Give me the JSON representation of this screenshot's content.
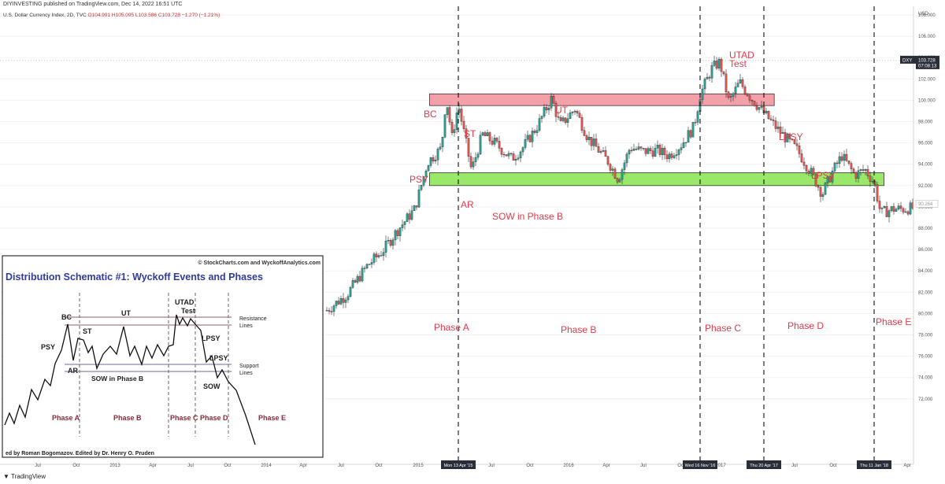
{
  "header": {
    "published": "DIYINVESTING published on TradingView.com, Dec 14, 2022 16:51 UTC",
    "symbol_line": "U.S. Dollar Currency Index, 2D, TVC",
    "ohlc": "O104.991 H105.095 L103.586 C103.728 −1.270 (−1.21%)"
  },
  "footer": {
    "brand": "TradingView"
  },
  "colors": {
    "up": "#26a69a",
    "down": "#ef5350",
    "label": "#e03a4a",
    "resistance_fill": "#f4a0a8",
    "support_fill": "#9ae86a",
    "inset_title": "#2f3c9e"
  },
  "chart_data": {
    "type": "candlestick",
    "title": "U.S. Dollar Currency Index, 2D, TVC",
    "currency": "USD",
    "ylim": [
      70.0,
      111.0
    ],
    "y_ticks": [
      "108.000",
      "106.000",
      "104.000",
      "102.000",
      "100.000",
      "98.000",
      "96.000",
      "94.000",
      "92.000",
      "90.000",
      "88.000",
      "86.000",
      "84.000",
      "82.000",
      "80.000",
      "78.000",
      "76.000",
      "74.000",
      "72.000"
    ],
    "x_ticks": [
      "Jul",
      "Oct",
      "2013",
      "Apr",
      "Jul",
      "Oct",
      "2014",
      "Apr",
      "Jul",
      "Oct",
      "2015",
      "Jul",
      "Oct",
      "2016",
      "Apr",
      "Jul",
      "Oct",
      "2017",
      "Jul",
      "Oct",
      "Apr"
    ],
    "last_price": {
      "symbol": "DXY",
      "value": "103.728",
      "countdown": "07:08:13"
    },
    "secondary_price": "90.264",
    "price_path": [
      [
        "2014-06-30",
        80.3
      ],
      [
        "2014-08-10",
        81.8
      ],
      [
        "2014-09-20",
        84.5
      ],
      [
        "2014-10-20",
        85.8
      ],
      [
        "2014-11-20",
        87.8
      ],
      [
        "2014-12-25",
        89.8
      ],
      [
        "2015-01-25",
        94.2
      ],
      [
        "2015-03-01",
        95.5
      ],
      [
        "2015-03-13",
        100.3
      ],
      [
        "2015-03-28",
        96.5
      ],
      [
        "2015-04-13",
        99.6
      ],
      [
        "2015-05-15",
        93.4
      ],
      [
        "2015-06-10",
        96.8
      ],
      [
        "2015-07-10",
        96.0
      ],
      [
        "2015-08-20",
        94.5
      ],
      [
        "2015-09-15",
        95.5
      ],
      [
        "2015-10-20",
        97.5
      ],
      [
        "2015-11-25",
        100.2
      ],
      [
        "2015-12-15",
        97.6
      ],
      [
        "2016-01-20",
        99.2
      ],
      [
        "2016-02-20",
        96.5
      ],
      [
        "2016-04-10",
        94.2
      ],
      [
        "2016-05-03",
        92.6
      ],
      [
        "2016-06-01",
        95.6
      ],
      [
        "2016-07-01",
        95.2
      ],
      [
        "2016-08-05",
        95.3
      ],
      [
        "2016-09-01",
        94.8
      ],
      [
        "2016-10-01",
        95.8
      ],
      [
        "2016-11-01",
        97.5
      ],
      [
        "2016-11-16",
        100.5
      ],
      [
        "2016-12-15",
        103.0
      ],
      [
        "2017-01-03",
        103.6
      ],
      [
        "2017-01-25",
        99.8
      ],
      [
        "2017-02-20",
        101.7
      ],
      [
        "2017-03-20",
        100.2
      ],
      [
        "2017-04-20",
        98.8
      ],
      [
        "2017-05-25",
        97.2
      ],
      [
        "2017-07-10",
        95.3
      ],
      [
        "2017-08-15",
        93.0
      ],
      [
        "2017-09-08",
        91.2
      ],
      [
        "2017-10-01",
        93.2
      ],
      [
        "2017-10-25",
        94.8
      ],
      [
        "2017-11-25",
        93.0
      ],
      [
        "2017-12-20",
        93.5
      ],
      [
        "2018-01-11",
        92.3
      ],
      [
        "2018-01-25",
        89.4
      ],
      [
        "2018-02-20",
        89.8
      ],
      [
        "2018-03-15",
        89.8
      ],
      [
        "2018-04-05",
        89.9
      ]
    ],
    "zones": [
      {
        "name": "resistance",
        "start": "2015-03-13",
        "end": "2017-05-15",
        "low": 99.5,
        "high": 100.6
      },
      {
        "name": "support",
        "start": "2015-03-13",
        "end": "2018-02-01",
        "low": 92.0,
        "high": 93.2
      }
    ],
    "vlines": [
      {
        "date": "2015-04-13",
        "label": "Mon 13 Apr '15"
      },
      {
        "date": "2016-11-16",
        "label": "Wed 16 Nov '16"
      },
      {
        "date": "2017-04-20",
        "label": "Thu 20 Apr '17"
      },
      {
        "date": "2018-01-11",
        "label": "Thu 11 Jan '18"
      }
    ],
    "event_labels": [
      "BC",
      "ST",
      "UT",
      "UTAD",
      "Test",
      "LPSY",
      "LPSY",
      "PSY",
      "AR",
      "SOW in Phase B"
    ],
    "phase_labels": [
      "Phase A",
      "Phase B",
      "Phase C",
      "Phase D",
      "Phase E"
    ]
  },
  "inset": {
    "credit": "© StockCharts.com and WyckoffAnalytics.com",
    "title": "Distribution Schematic #1: Wyckoff Events and Phases",
    "labels": [
      "BC",
      "UT",
      "UTAD",
      "Test",
      "ST",
      "PSY",
      "AR",
      "SOW in Phase B",
      "LPSY",
      "LPSY",
      "SOW"
    ],
    "resistance_label": "Resistance\nLines",
    "support_label": "Support\nLines",
    "phases": [
      "Phase A",
      "Phase B",
      "Phase C",
      "Phase D",
      "Phase E"
    ],
    "footer": "ed by Roman Bogomazov. Edited by Dr. Henry O. Pruden"
  }
}
